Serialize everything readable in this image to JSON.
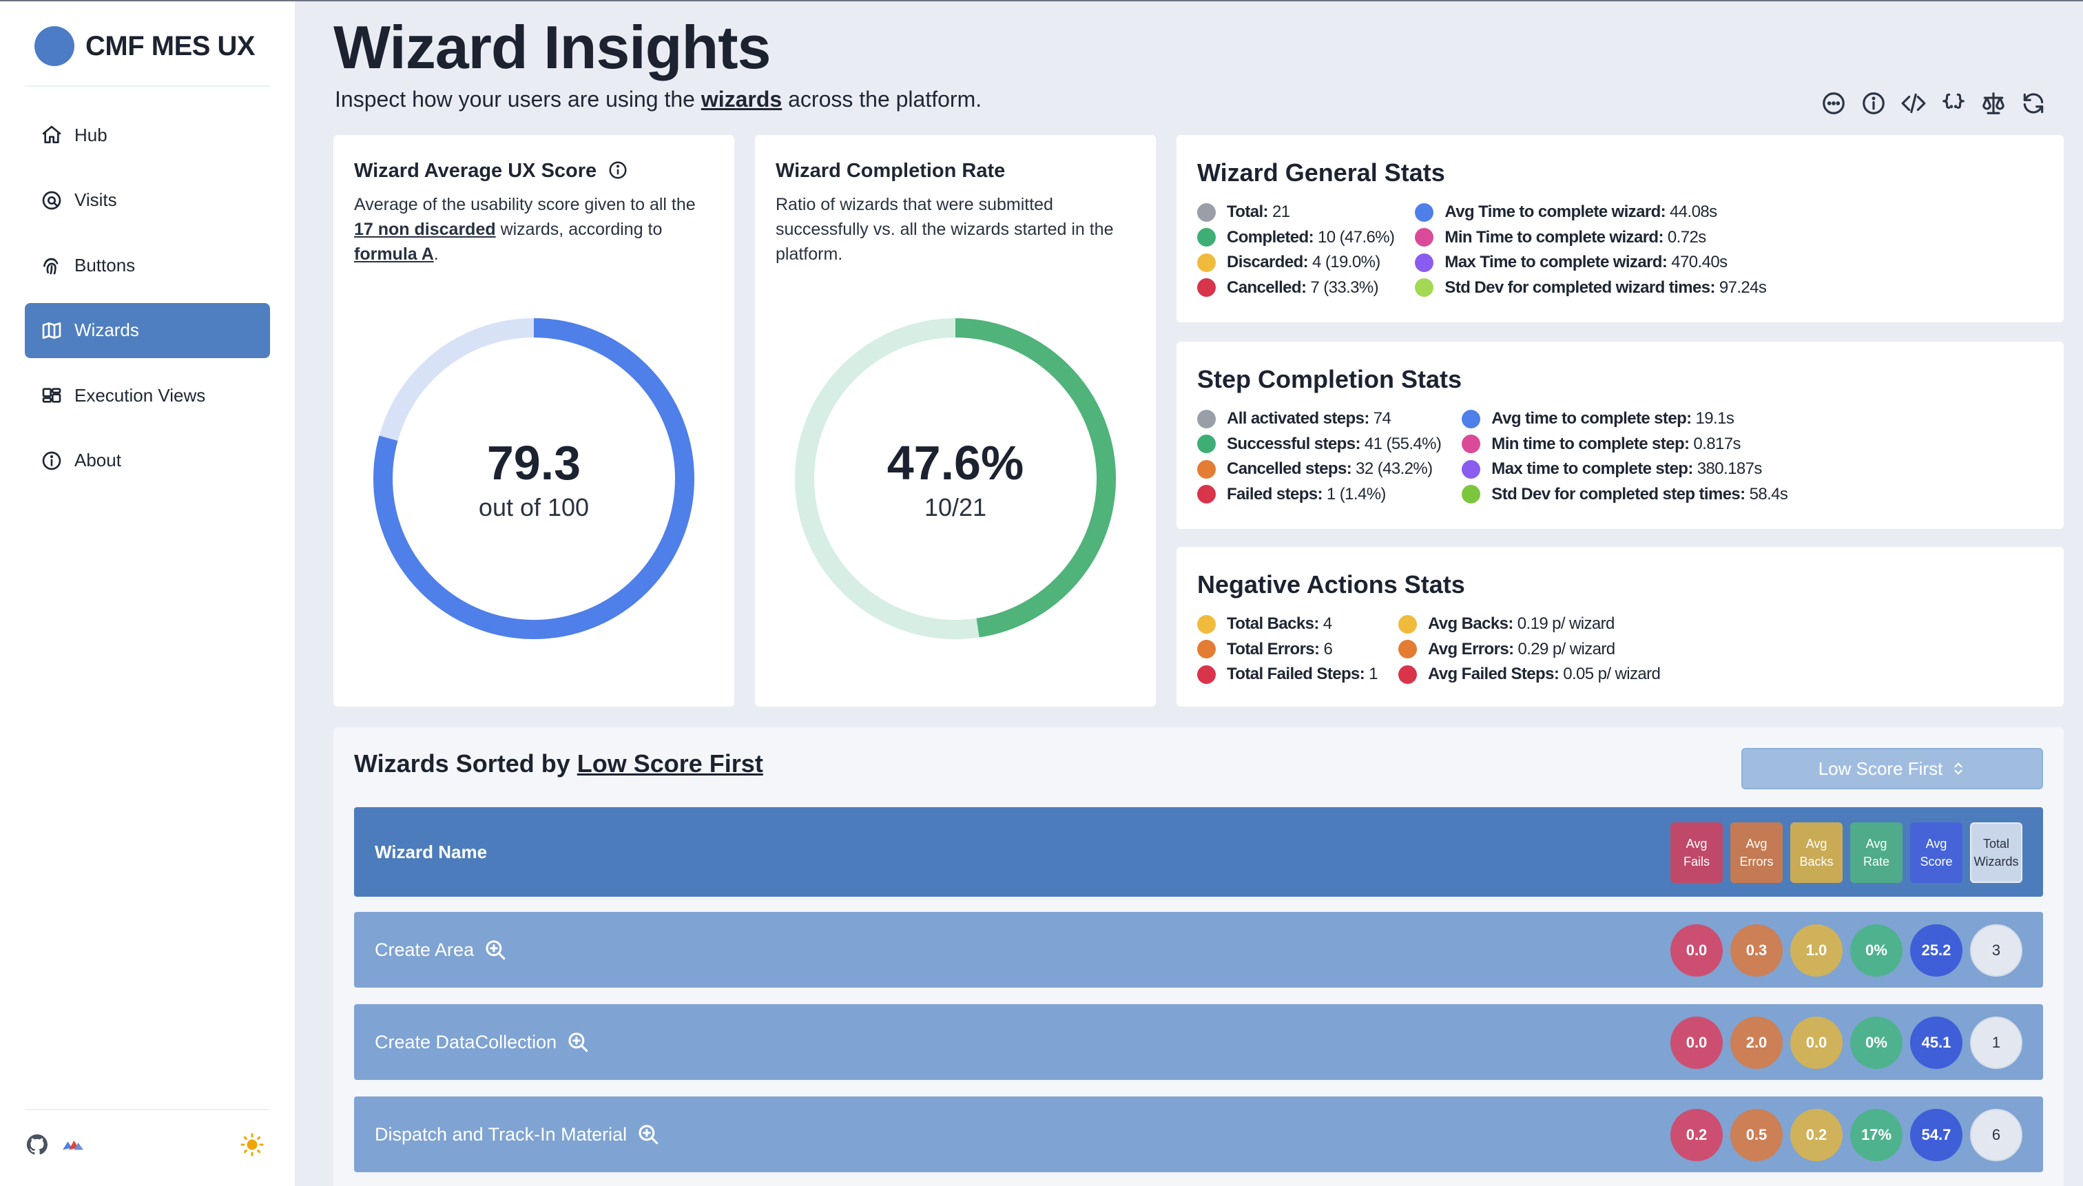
{
  "app": {
    "name": "CMF MES UX"
  },
  "nav": {
    "items": [
      {
        "label": "Hub",
        "icon": "home-icon"
      },
      {
        "label": "Visits",
        "icon": "eye-icon"
      },
      {
        "label": "Buttons",
        "icon": "fingerprint-icon"
      },
      {
        "label": "Wizards",
        "icon": "map-icon",
        "active": true
      },
      {
        "label": "Execution Views",
        "icon": "layout-icon"
      },
      {
        "label": "About",
        "icon": "info-icon"
      }
    ]
  },
  "header": {
    "title": "Wizard Insights",
    "subtitle_pre": "Inspect how your users are using the ",
    "subtitle_link": "wizards",
    "subtitle_post": " across the platform."
  },
  "ux_score": {
    "title": "Wizard Average UX Score",
    "desc_pre": "Average of the usability score given to all the ",
    "desc_link": "17 non discarded",
    "desc_mid": " wizards, according to ",
    "desc_link2": "formula A",
    "desc_post": ".",
    "value": "79.3",
    "sub": "out of 100",
    "fraction": 0.793,
    "color": "#4f7fe8",
    "track": "#d8e2f7"
  },
  "completion": {
    "title": "Wizard Completion Rate",
    "desc": "Ratio of wizards that were submitted successfully vs. all the wizards started in the platform.",
    "value": "47.6%",
    "sub": "10/21",
    "fraction": 0.476,
    "color": "#4fb37a",
    "track": "#d6eee3"
  },
  "general": {
    "title": "Wizard General Stats",
    "left": [
      {
        "label": "Total:",
        "value": "21",
        "color": "#9a9ea6"
      },
      {
        "label": "Completed:",
        "value": "10 (47.6%)",
        "color": "#3fae75"
      },
      {
        "label": "Discarded:",
        "value": "4 (19.0%)",
        "color": "#f0bb3c"
      },
      {
        "label": "Cancelled:",
        "value": "7 (33.3%)",
        "color": "#d8344a"
      }
    ],
    "right": [
      {
        "label": "Avg Time to complete wizard:",
        "value": "44.08s",
        "color": "#4f7fe8"
      },
      {
        "label": "Min Time to complete wizard:",
        "value": "0.72s",
        "color": "#d94b98"
      },
      {
        "label": "Max Time to complete wizard:",
        "value": "470.40s",
        "color": "#8b5cf0"
      },
      {
        "label": "Std Dev for completed wizard times:",
        "value": "97.24s",
        "color": "#a3d855"
      }
    ]
  },
  "steps": {
    "title": "Step Completion Stats",
    "left": [
      {
        "label": "All activated steps:",
        "value": "74",
        "color": "#9a9ea6"
      },
      {
        "label": "Successful steps:",
        "value": "41 (55.4%)",
        "color": "#3fae75"
      },
      {
        "label": "Cancelled steps:",
        "value": "32 (43.2%)",
        "color": "#e47c33"
      },
      {
        "label": "Failed steps:",
        "value": "1 (1.4%)",
        "color": "#d8344a"
      }
    ],
    "right": [
      {
        "label": "Avg time to complete step:",
        "value": "19.1s",
        "color": "#4f7fe8"
      },
      {
        "label": "Min time to complete step:",
        "value": "0.817s",
        "color": "#d94b98"
      },
      {
        "label": "Max time to complete step:",
        "value": "380.187s",
        "color": "#8b5cf0"
      },
      {
        "label": "Std Dev for completed step times:",
        "value": "58.4s",
        "color": "#7cc63d"
      }
    ]
  },
  "negative": {
    "title": "Negative Actions Stats",
    "left": [
      {
        "label": "Total Backs:",
        "value": "4",
        "color": "#f0bb3c"
      },
      {
        "label": "Total Errors:",
        "value": "6",
        "color": "#e47c33"
      },
      {
        "label": "Total Failed Steps:",
        "value": "1",
        "color": "#d8344a"
      }
    ],
    "right": [
      {
        "label": "Avg Backs:",
        "value": "0.19 p/ wizard",
        "color": "#f0bb3c"
      },
      {
        "label": "Avg Errors:",
        "value": "0.29 p/ wizard",
        "color": "#e47c33"
      },
      {
        "label": "Avg Failed Steps:",
        "value": "0.05 p/ wizard",
        "color": "#d8344a"
      }
    ]
  },
  "table": {
    "title_pre": "Wizards Sorted by ",
    "title_link": "Low Score First",
    "sort_label": "Low Score First",
    "col_name": "Wizard Name",
    "columns": [
      {
        "line1": "Avg",
        "line2": "Fails",
        "color": "#c0496a"
      },
      {
        "line1": "Avg",
        "line2": "Errors",
        "color": "#c47a52"
      },
      {
        "line1": "Avg",
        "line2": "Backs",
        "color": "#c9ab56"
      },
      {
        "line1": "Avg",
        "line2": "Rate",
        "color": "#4fab8a"
      },
      {
        "line1": "Avg",
        "line2": "Score",
        "color": "#4664d8"
      },
      {
        "line1": "Total",
        "line2": "Wizards",
        "color": "#c9d6ea"
      }
    ],
    "rows": [
      {
        "name": "Create Area",
        "values": [
          "0.0",
          "0.3",
          "1.0",
          "0%",
          "25.2",
          "3"
        ]
      },
      {
        "name": "Create DataCollection",
        "values": [
          "0.0",
          "2.0",
          "0.0",
          "0%",
          "45.1",
          "1"
        ]
      },
      {
        "name": "Dispatch and Track-In Material",
        "values": [
          "0.2",
          "0.5",
          "0.2",
          "17%",
          "54.7",
          "6"
        ]
      }
    ],
    "chip_colors": [
      "#cc4f72",
      "#cd7f55",
      "#cfb25a",
      "#4fb28f",
      "#3f5fd9"
    ]
  }
}
